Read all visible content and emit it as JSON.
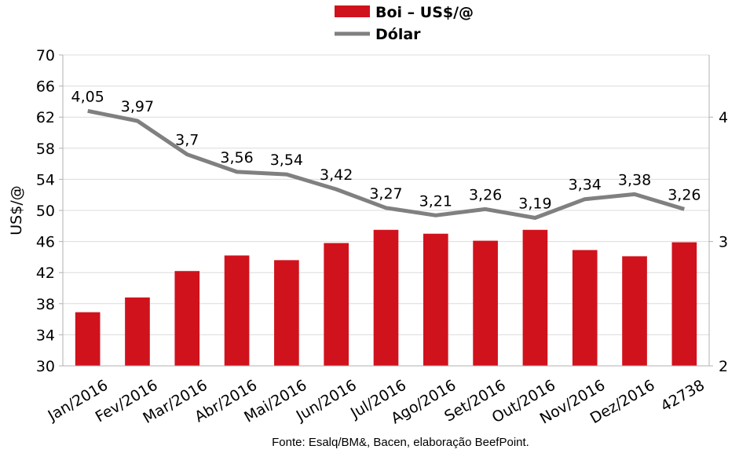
{
  "chart_data": {
    "type": "bar+line",
    "categories": [
      "Jan/2016",
      "Fev/2016",
      "Mar/2016",
      "Abr/2016",
      "Mai/2016",
      "Jun/2016",
      "Jul/2016",
      "Ago/2016",
      "Set/2016",
      "Out/2016",
      "Nov/2016",
      "Dez/2016",
      "42738"
    ],
    "series": [
      {
        "name": "Boi – US$/@",
        "type": "bar",
        "axis": "left",
        "color": "#d0121c",
        "values": [
          36.9,
          38.8,
          42.2,
          44.2,
          43.6,
          45.8,
          47.5,
          47.0,
          46.1,
          47.5,
          44.9,
          44.1,
          45.9
        ]
      },
      {
        "name": "Dólar",
        "type": "line",
        "axis": "right",
        "color": "#808080",
        "values": [
          4.05,
          3.97,
          3.7,
          3.56,
          3.54,
          3.42,
          3.27,
          3.21,
          3.26,
          3.19,
          3.34,
          3.38,
          3.26
        ],
        "labels": [
          "4,05",
          "3,97",
          "3,7",
          "3,56",
          "3,54",
          "3,42",
          "3,27",
          "3,21",
          "3,26",
          "3,19",
          "3,34",
          "3,38",
          "3,26"
        ]
      }
    ],
    "ylabel": "US$/@",
    "ylim": [
      30,
      70
    ],
    "yticks": [
      "30",
      "34",
      "38",
      "42",
      "46",
      "50",
      "54",
      "58",
      "62",
      "66",
      "70"
    ],
    "y2lim": [
      2,
      4.5
    ],
    "y2ticks": [
      "2",
      "3",
      "4"
    ],
    "grid": true,
    "legend_position": "top-center",
    "source_note": "Fonte:  Esalq/BM&,  Bacen,  elaboração  BeefPoint."
  }
}
